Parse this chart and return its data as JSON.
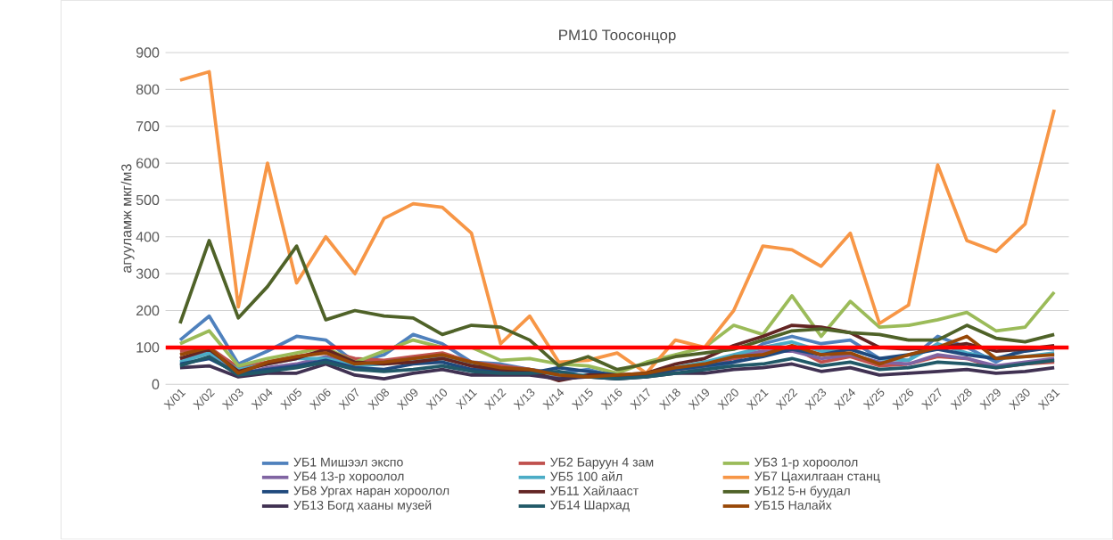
{
  "chart_data": {
    "type": "line",
    "title": "PM10 Тоосонцор",
    "ylabel": "агууламж мкг/м3",
    "categories": [
      "X/01",
      "X/02",
      "X/03",
      "X/04",
      "X/05",
      "X/06",
      "X/07",
      "X/08",
      "X/09",
      "X/10",
      "X/11",
      "X/12",
      "X/13",
      "X/14",
      "X/15",
      "X/16",
      "X/17",
      "X/18",
      "X/19",
      "X/20",
      "X/21",
      "X/22",
      "X/23",
      "X/24",
      "X/25",
      "X/26",
      "X/27",
      "X/28",
      "X/29",
      "X/30",
      "X/31"
    ],
    "ylim": [
      0,
      900
    ],
    "yticks": [
      0,
      100,
      200,
      300,
      400,
      500,
      600,
      700,
      800,
      900
    ],
    "grid": "y",
    "legend": "bottom",
    "line_style": "solid",
    "ref_lines": [
      {
        "axis": "y",
        "value": 100,
        "color": "#ff0000"
      }
    ],
    "series": [
      {
        "name": "УБ1 Мишээл  экспо",
        "color": "#4f81bd",
        "values": [
          120,
          185,
          55,
          90,
          130,
          120,
          60,
          80,
          135,
          110,
          60,
          55,
          40,
          30,
          40,
          20,
          30,
          45,
          40,
          60,
          110,
          130,
          110,
          120,
          70,
          65,
          130,
          100,
          60,
          100,
          95
        ]
      },
      {
        "name": "УБ2 Баруун 4 зам",
        "color": "#c0504d",
        "values": [
          90,
          100,
          45,
          60,
          75,
          90,
          70,
          65,
          75,
          85,
          60,
          50,
          40,
          25,
          25,
          20,
          25,
          40,
          50,
          70,
          85,
          100,
          60,
          75,
          50,
          55,
          75,
          70,
          45,
          55,
          60
        ]
      },
      {
        "name": "УБ3 1-р хороолол",
        "color": "#9bbb59",
        "values": [
          110,
          145,
          50,
          70,
          85,
          100,
          60,
          90,
          120,
          100,
          100,
          65,
          70,
          55,
          50,
          30,
          60,
          80,
          100,
          160,
          135,
          240,
          130,
          225,
          155,
          160,
          175,
          195,
          145,
          155,
          250
        ]
      },
      {
        "name": "УБ4 13-р хороолол",
        "color": "#8064a2",
        "values": [
          70,
          85,
          25,
          45,
          55,
          75,
          55,
          60,
          70,
          75,
          50,
          35,
          30,
          20,
          25,
          25,
          20,
          40,
          50,
          75,
          90,
          90,
          70,
          80,
          60,
          55,
          80,
          70,
          50,
          60,
          70
        ]
      },
      {
        "name": "УБ5 100 айл",
        "color": "#4bacc6",
        "values": [
          60,
          85,
          40,
          55,
          70,
          70,
          50,
          55,
          65,
          70,
          55,
          40,
          35,
          25,
          25,
          20,
          25,
          45,
          60,
          80,
          100,
          115,
          90,
          95,
          70,
          65,
          110,
          85,
          70,
          75,
          85
        ]
      },
      {
        "name": "УБ7 Цахилгаан  станц",
        "color": "#f79646",
        "values": [
          825,
          848,
          210,
          600,
          275,
          400,
          300,
          450,
          490,
          480,
          410,
          110,
          185,
          60,
          65,
          85,
          30,
          120,
          100,
          200,
          375,
          365,
          320,
          410,
          165,
          215,
          595,
          390,
          360,
          435,
          745
        ]
      },
      {
        "name": "УБ8 Ургах наран хороолол",
        "color": "#1f497d",
        "values": [
          55,
          70,
          30,
          40,
          50,
          65,
          45,
          40,
          55,
          60,
          40,
          35,
          30,
          45,
          35,
          25,
          25,
          40,
          50,
          60,
          75,
          95,
          80,
          95,
          70,
          80,
          95,
          80,
          70,
          90,
          100
        ]
      },
      {
        "name": "УБ11 Хайлааст",
        "color": "#632523",
        "values": [
          70,
          95,
          35,
          55,
          70,
          95,
          60,
          55,
          60,
          70,
          50,
          40,
          35,
          10,
          25,
          25,
          30,
          55,
          70,
          105,
          130,
          160,
          155,
          140,
          100,
          95,
          100,
          110,
          90,
          95,
          105
        ]
      },
      {
        "name": "УБ12 5-н буудал",
        "color": "#4f6228",
        "values": [
          165,
          390,
          180,
          265,
          375,
          175,
          200,
          185,
          180,
          135,
          160,
          155,
          120,
          50,
          75,
          40,
          55,
          75,
          85,
          95,
          120,
          145,
          150,
          140,
          135,
          120,
          120,
          160,
          125,
          115,
          135
        ]
      },
      {
        "name": "УБ13 Богд хааны музей",
        "color": "#403152",
        "values": [
          45,
          50,
          20,
          30,
          30,
          55,
          25,
          15,
          30,
          40,
          25,
          25,
          25,
          15,
          20,
          15,
          20,
          30,
          30,
          40,
          45,
          55,
          35,
          45,
          25,
          30,
          35,
          40,
          30,
          35,
          45
        ]
      },
      {
        "name": "УБ14 Шархад",
        "color": "#215968",
        "values": [
          50,
          75,
          25,
          35,
          45,
          60,
          40,
          35,
          40,
          50,
          35,
          30,
          30,
          35,
          20,
          15,
          20,
          30,
          40,
          50,
          55,
          70,
          50,
          60,
          40,
          45,
          60,
          55,
          45,
          55,
          65
        ]
      },
      {
        "name": "УБ15 Налайх",
        "color": "#984807",
        "values": [
          80,
          100,
          30,
          60,
          75,
          85,
          55,
          60,
          70,
          80,
          60,
          45,
          40,
          25,
          20,
          25,
          30,
          45,
          55,
          75,
          80,
          105,
          80,
          85,
          55,
          80,
          100,
          130,
          70,
          75,
          80
        ]
      }
    ]
  }
}
